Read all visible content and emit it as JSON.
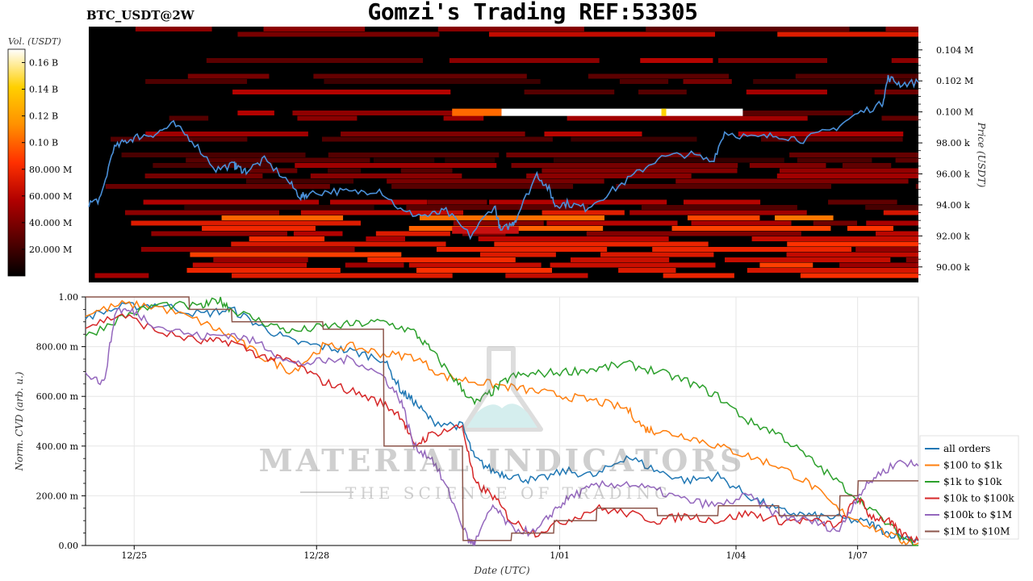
{
  "header": {
    "pair": "BTC_USDT@2W",
    "title": "Gomzi's Trading REF:53305"
  },
  "watermark": {
    "line1": "MATERIAL INDICATORS",
    "line2": "THE SCIENCE OF TRADING"
  },
  "colors": {
    "heatmap_bg": "#000000",
    "price_line": "#4a90d9",
    "grid": "#e6e6e6"
  },
  "chart_data": [
    {
      "type": "heatmap",
      "title": "",
      "xlabel": "",
      "ylabel": "Price (USDT)",
      "ylim": [
        89000,
        105500
      ],
      "y_ticks": [
        {
          "value": 90000,
          "label": "90.00 k"
        },
        {
          "value": 92000,
          "label": "92.00 k"
        },
        {
          "value": 94000,
          "label": "94.00 k"
        },
        {
          "value": 96000,
          "label": "96.00 k"
        },
        {
          "value": 98000,
          "label": "98.00 k"
        },
        {
          "value": 100000,
          "label": "0.100 M"
        },
        {
          "value": 102000,
          "label": "0.102 M"
        },
        {
          "value": 104000,
          "label": "0.104 M"
        }
      ],
      "colorbar": {
        "label": "Vol. (USDT)",
        "range": [
          0,
          0.17
        ],
        "colors": [
          "#000000",
          "#5a0000",
          "#b00000",
          "#ff3000",
          "#ff9000",
          "#ffd000",
          "#ffffff"
        ],
        "ticks": [
          {
            "value": 0.02,
            "label": "20.000 M"
          },
          {
            "value": 0.04,
            "label": "40.000 M"
          },
          {
            "value": 0.06,
            "label": "60.000 M"
          },
          {
            "value": 0.08,
            "label": "80.000 M"
          },
          {
            "value": 0.1,
            "label": "0.10 B"
          },
          {
            "value": 0.12,
            "label": "0.12 B"
          },
          {
            "value": 0.14,
            "label": "0.14 B"
          },
          {
            "value": 0.16,
            "label": "0.16 B"
          }
        ]
      },
      "x_range": [
        23.6,
        37.3
      ],
      "price_series": {
        "name": "price",
        "x": [
          23.6,
          23.8,
          24.0,
          24.2,
          24.4,
          24.7,
          25.0,
          25.3,
          25.7,
          26.0,
          26.05,
          26.2,
          26.5,
          26.9,
          27.1,
          27.2,
          27.6,
          28.0,
          28.4,
          28.8,
          29.2,
          29.5,
          29.9,
          30.3,
          30.4,
          30.6,
          30.65,
          31.0,
          31.2,
          31.3,
          31.5,
          31.8,
          32.2,
          32.6,
          33.0,
          33.5,
          33.9,
          34.1,
          34.6,
          35.0,
          35.4,
          35.9,
          36.3,
          36.7,
          36.8,
          37.0,
          37.3
        ],
        "y": [
          94.1,
          94.4,
          97.6,
          98.1,
          98.4,
          98.6,
          99.2,
          98.2,
          96.3,
          96.6,
          96.4,
          96.2,
          96.9,
          95.5,
          94.5,
          94.7,
          94.9,
          94.8,
          95.0,
          93.5,
          93.3,
          93.6,
          92.0,
          94.0,
          92.3,
          92.8,
          93.1,
          96.0,
          95.0,
          94.0,
          94.1,
          93.8,
          94.8,
          95.9,
          97.0,
          97.3,
          96.8,
          98.7,
          98.3,
          98.5,
          98.2,
          98.9,
          99.9,
          100.5,
          102.2,
          101.8,
          101.9
        ]
      },
      "highlight_bands": [
        {
          "price": 100000,
          "x": [
            29.6,
            34.4
          ],
          "level": "max"
        },
        {
          "price": 92400,
          "x": [
            29.6,
            30.7
          ],
          "level": "high"
        }
      ]
    },
    {
      "type": "line",
      "title": "",
      "xlabel": "Date (UTC)",
      "ylabel": "Norm. CVD (arb. u.)",
      "ylim": [
        0,
        1
      ],
      "x_range": [
        23.6,
        37.3
      ],
      "x_ticks": [
        {
          "value": 24.4,
          "label": "12/25"
        },
        {
          "value": 27.4,
          "label": "12/28"
        },
        {
          "value": 31.4,
          "label": "1/01"
        },
        {
          "value": 34.3,
          "label": "1/04"
        },
        {
          "value": 36.3,
          "label": "1/07"
        }
      ],
      "y_ticks": [
        {
          "value": 0,
          "label": "0.00"
        },
        {
          "value": 0.2,
          "label": "200.00 m"
        },
        {
          "value": 0.4,
          "label": "400.00 m"
        },
        {
          "value": 0.6,
          "label": "600.00 m"
        },
        {
          "value": 0.8,
          "label": "800.00 m"
        },
        {
          "value": 1.0,
          "label": "1.00"
        }
      ],
      "legend_position": "right",
      "series": [
        {
          "name": "all orders",
          "color": "#1f77b4",
          "x": [
            23.6,
            24.2,
            24.8,
            25.5,
            26.0,
            26.5,
            27.0,
            27.5,
            28.0,
            28.5,
            28.8,
            29.0,
            29.3,
            29.8,
            30.0,
            30.3,
            30.6,
            31.0,
            31.5,
            32.0,
            32.5,
            33.0,
            33.5,
            34.0,
            34.5,
            35.0,
            35.5,
            36.0,
            36.5,
            36.8,
            37.3
          ],
          "y": [
            0.92,
            0.96,
            0.97,
            0.93,
            0.95,
            0.88,
            0.82,
            0.8,
            0.78,
            0.75,
            0.62,
            0.58,
            0.5,
            0.48,
            0.35,
            0.3,
            0.28,
            0.26,
            0.3,
            0.28,
            0.36,
            0.3,
            0.26,
            0.28,
            0.2,
            0.14,
            0.12,
            0.11,
            0.09,
            0.05,
            0.02
          ]
        },
        {
          "name": "$100 to $1k",
          "color": "#ff7f0e",
          "x": [
            23.6,
            24.2,
            24.8,
            25.5,
            26.0,
            26.5,
            27.0,
            27.5,
            28.0,
            28.5,
            29.0,
            29.5,
            30.0,
            30.5,
            31.0,
            31.5,
            32.0,
            32.5,
            32.8,
            33.0,
            33.5,
            34.0,
            34.5,
            35.0,
            35.5,
            36.0,
            36.5,
            37.0,
            37.3
          ],
          "y": [
            0.93,
            0.97,
            0.96,
            0.9,
            0.84,
            0.76,
            0.7,
            0.8,
            0.8,
            0.77,
            0.76,
            0.68,
            0.66,
            0.64,
            0.62,
            0.6,
            0.58,
            0.55,
            0.47,
            0.46,
            0.44,
            0.4,
            0.36,
            0.32,
            0.25,
            0.14,
            0.08,
            0.02,
            0.01
          ]
        },
        {
          "name": "$1k to $10k",
          "color": "#2ca02c",
          "x": [
            23.6,
            24.2,
            24.8,
            25.5,
            25.8,
            26.0,
            26.5,
            27.0,
            27.5,
            28.0,
            28.5,
            29.0,
            29.3,
            29.7,
            30.0,
            30.3,
            30.6,
            31.0,
            31.5,
            32.0,
            32.5,
            33.0,
            33.5,
            34.0,
            34.5,
            35.0,
            35.5,
            36.0,
            36.5,
            37.0,
            37.3
          ],
          "y": [
            0.84,
            0.92,
            0.97,
            0.96,
            0.99,
            0.95,
            0.9,
            0.86,
            0.88,
            0.89,
            0.9,
            0.86,
            0.78,
            0.66,
            0.57,
            0.62,
            0.68,
            0.69,
            0.7,
            0.71,
            0.73,
            0.7,
            0.66,
            0.6,
            0.5,
            0.45,
            0.35,
            0.25,
            0.15,
            0.04,
            0.0
          ]
        },
        {
          "name": "$10k to $100k",
          "color": "#d62728",
          "x": [
            23.6,
            24.2,
            24.8,
            25.5,
            26.0,
            26.5,
            27.0,
            27.5,
            28.0,
            28.5,
            28.8,
            29.0,
            29.3,
            29.8,
            30.0,
            30.3,
            30.6,
            31.0,
            31.5,
            32.0,
            32.5,
            33.0,
            33.5,
            34.0,
            34.5,
            35.0,
            35.5,
            36.0,
            36.3,
            36.5,
            36.8,
            37.0,
            37.3
          ],
          "y": [
            0.88,
            0.93,
            0.86,
            0.82,
            0.82,
            0.76,
            0.74,
            0.66,
            0.62,
            0.57,
            0.52,
            0.4,
            0.45,
            0.48,
            0.25,
            0.2,
            0.1,
            0.05,
            0.1,
            0.15,
            0.13,
            0.1,
            0.12,
            0.1,
            0.13,
            0.1,
            0.1,
            0.08,
            0.2,
            0.12,
            0.1,
            0.05,
            0.02
          ]
        },
        {
          "name": "$100k to $1M",
          "color": "#9467bd",
          "x": [
            23.6,
            23.9,
            24.1,
            24.4,
            24.8,
            25.5,
            26.0,
            26.5,
            27.0,
            27.5,
            28.0,
            28.5,
            28.8,
            29.0,
            29.3,
            29.6,
            29.9,
            30.0,
            30.3,
            30.6,
            31.0,
            31.3,
            31.6,
            32.0,
            32.5,
            33.0,
            33.5,
            34.0,
            34.5,
            35.0,
            35.5,
            36.0,
            36.3,
            36.6,
            37.0,
            37.3
          ],
          "y": [
            0.7,
            0.65,
            0.95,
            0.94,
            0.88,
            0.84,
            0.85,
            0.81,
            0.73,
            0.74,
            0.75,
            0.68,
            0.58,
            0.4,
            0.35,
            0.2,
            0.02,
            0.01,
            0.16,
            0.07,
            0.05,
            0.14,
            0.2,
            0.24,
            0.25,
            0.22,
            0.18,
            0.16,
            0.2,
            0.12,
            0.1,
            0.06,
            0.2,
            0.28,
            0.34,
            0.32
          ]
        },
        {
          "name": "$1M to $10M",
          "color": "#8c564b",
          "x": [
            23.6,
            25.3,
            25.31,
            26.0,
            26.01,
            27.5,
            27.51,
            28.5,
            28.51,
            29.8,
            29.81,
            30.6,
            30.61,
            31.3,
            31.31,
            32.0,
            32.01,
            33.0,
            33.01,
            34.0,
            34.01,
            35.0,
            35.01,
            36.0,
            36.01,
            36.3,
            36.31,
            37.3
          ],
          "y": [
            1.0,
            1.0,
            0.95,
            0.95,
            0.9,
            0.9,
            0.87,
            0.87,
            0.4,
            0.4,
            0.02,
            0.02,
            0.05,
            0.05,
            0.1,
            0.1,
            0.15,
            0.15,
            0.12,
            0.12,
            0.16,
            0.16,
            0.12,
            0.12,
            0.2,
            0.2,
            0.26,
            0.26
          ]
        }
      ]
    }
  ]
}
